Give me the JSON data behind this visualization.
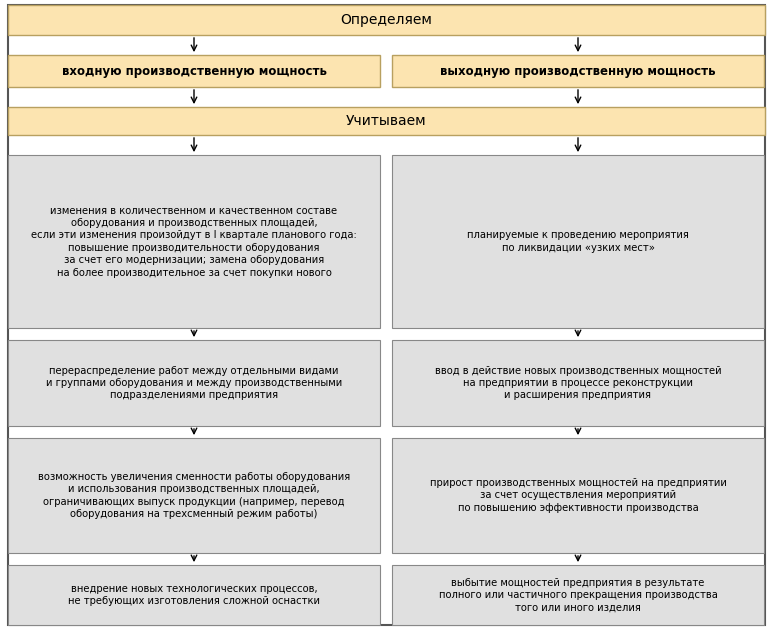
{
  "bg_color": "#ffffff",
  "outer_border_color": "#555555",
  "orange_fill": "#fce4b0",
  "orange_border": "#b8a060",
  "gray_fill": "#e0e0e0",
  "gray_border": "#888888",
  "title_top": "Определяем",
  "box_left_title": "входную производственную мощность",
  "box_right_title": "выходную производственную мощность",
  "title_mid": "Учитываем",
  "left_boxes": [
    "изменения в количественном и качественном составе\nоборудования и производственных площадей,\nесли эти изменения произойдут в I квартале планового года:\nповышение производительности оборудования\nза счет его модернизации; замена оборудования\nна более производительное за счет покупки нового",
    "перераспределение работ между отдельными видами\nи группами оборудования и между производственными\nподразделениями предприятия",
    "возможность увеличения сменности работы оборудования\nи использования производственных площадей,\nограничивающих выпуск продукции (например, перевод\nоборудования на трехсменный режим работы)",
    "внедрение новых технологических процессов,\nне требующих изготовления сложной оснастки"
  ],
  "right_boxes": [
    "планируемые к проведению мероприятия\nпо ликвидации «узких мест»",
    "ввод в действие новых производственных мощностей\nна предприятии в процессе реконструкции\nи расширения предприятия",
    "прирост производственных мощностей на предприятии\nза счет осуществления мероприятий\nпо повышению эффективности производства",
    "выбытие мощностей предприятия в результате\nполного или частичного прекращения производства\nтого или иного изделия"
  ],
  "figsize": [
    7.73,
    6.31
  ],
  "dpi": 100
}
